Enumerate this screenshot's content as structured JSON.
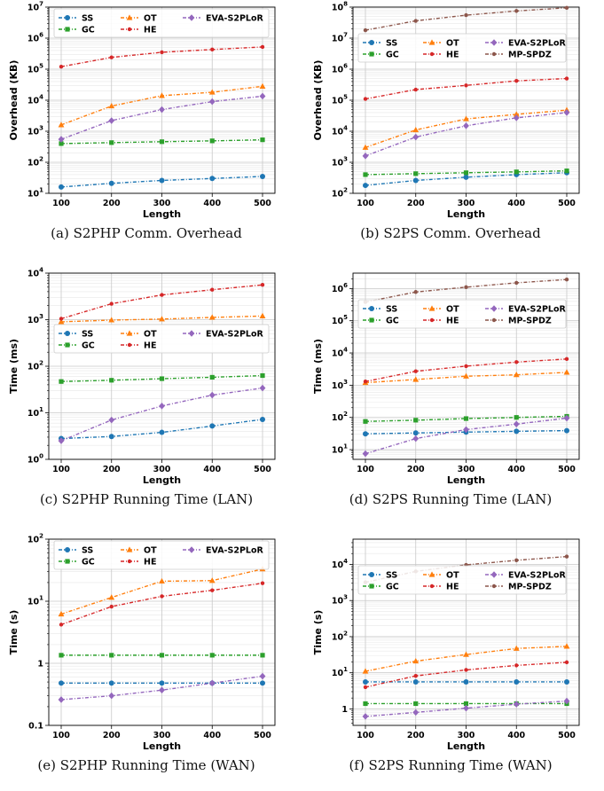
{
  "chart_data": [
    {
      "id": "a",
      "type": "line",
      "caption": "(a) S2PHP Comm. Overhead",
      "xlabel": "Length",
      "ylabel": "Overhead (KB)",
      "yscale": "log",
      "ylim": [
        10,
        10000000
      ],
      "x": [
        100,
        200,
        300,
        400,
        500
      ],
      "yticks": [
        {
          "v": 10,
          "b": "10",
          "e": "1"
        },
        {
          "v": 100,
          "b": "10",
          "e": "2"
        },
        {
          "v": 1000,
          "b": "10",
          "e": "3"
        },
        {
          "v": 10000,
          "b": "10",
          "e": "4"
        },
        {
          "v": 100000,
          "b": "10",
          "e": "5"
        },
        {
          "v": 1000000,
          "b": "10",
          "e": "6"
        },
        {
          "v": 10000000,
          "b": "10",
          "e": "7"
        }
      ],
      "legend": "top",
      "series": [
        {
          "name": "SS",
          "color": "#1f77b4",
          "marker": "circle",
          "values": [
            16,
            21,
            26,
            30,
            35
          ]
        },
        {
          "name": "GC",
          "color": "#2ca02c",
          "marker": "square",
          "values": [
            400,
            430,
            460,
            490,
            530
          ]
        },
        {
          "name": "OT",
          "color": "#ff7f0e",
          "marker": "triangle",
          "values": [
            1600,
            6500,
            14000,
            18000,
            28000
          ]
        },
        {
          "name": "HE",
          "color": "#d62728",
          "marker": "dot",
          "values": [
            120000,
            240000,
            350000,
            430000,
            520000
          ]
        },
        {
          "name": "EVA-S2PLoR",
          "color": "#9467bd",
          "marker": "diamond",
          "values": [
            550,
            2200,
            5000,
            9000,
            13500
          ]
        }
      ]
    },
    {
      "id": "b",
      "type": "line",
      "caption": "(b) S2PS Comm. Overhead",
      "xlabel": "Length",
      "ylabel": "Overhead (KB)",
      "yscale": "log",
      "ylim": [
        100,
        100000000
      ],
      "x": [
        100,
        200,
        300,
        400,
        500
      ],
      "yticks": [
        {
          "v": 100,
          "b": "10",
          "e": "2"
        },
        {
          "v": 1000,
          "b": "10",
          "e": "3"
        },
        {
          "v": 10000,
          "b": "10",
          "e": "4"
        },
        {
          "v": 100000,
          "b": "10",
          "e": "5"
        },
        {
          "v": 1000000,
          "b": "10",
          "e": "6"
        },
        {
          "v": 10000000,
          "b": "10",
          "e": "7"
        },
        {
          "v": 100000000,
          "b": "10",
          "e": "8"
        }
      ],
      "legend": "upper",
      "series": [
        {
          "name": "SS",
          "color": "#1f77b4",
          "marker": "circle",
          "values": [
            180,
            260,
            330,
            400,
            460
          ]
        },
        {
          "name": "GC",
          "color": "#2ca02c",
          "marker": "square",
          "values": [
            400,
            430,
            460,
            490,
            530
          ]
        },
        {
          "name": "OT",
          "color": "#ff7f0e",
          "marker": "triangle",
          "values": [
            3000,
            11000,
            25000,
            35000,
            48000
          ]
        },
        {
          "name": "HE",
          "color": "#d62728",
          "marker": "dot",
          "values": [
            110000,
            220000,
            300000,
            420000,
            500000
          ]
        },
        {
          "name": "EVA-S2PLoR",
          "color": "#9467bd",
          "marker": "diamond",
          "values": [
            1600,
            6500,
            15000,
            27000,
            40000
          ]
        },
        {
          "name": "MP-SPDZ",
          "color": "#8c564b",
          "marker": "dot",
          "values": [
            18000000,
            36000000,
            55000000,
            75000000,
            95000000
          ]
        }
      ]
    },
    {
      "id": "c",
      "type": "line",
      "caption": "(c) S2PHP Running Time (LAN)",
      "xlabel": "Length",
      "ylabel": "Time (ms)",
      "yscale": "log",
      "ylim": [
        1,
        10000
      ],
      "x": [
        100,
        200,
        300,
        400,
        500
      ],
      "yticks": [
        {
          "v": 1,
          "b": "10",
          "e": "0"
        },
        {
          "v": 10,
          "b": "10",
          "e": "1"
        },
        {
          "v": 100,
          "b": "10",
          "e": "2"
        },
        {
          "v": 1000,
          "b": "10",
          "e": "3"
        },
        {
          "v": 10000,
          "b": "10",
          "e": "4"
        }
      ],
      "legend": "middle",
      "series": [
        {
          "name": "SS",
          "color": "#1f77b4",
          "marker": "circle",
          "values": [
            2.8,
            3.1,
            3.8,
            5.2,
            7.2
          ]
        },
        {
          "name": "GC",
          "color": "#2ca02c",
          "marker": "square",
          "values": [
            47,
            50,
            54,
            58,
            63
          ]
        },
        {
          "name": "OT",
          "color": "#ff7f0e",
          "marker": "triangle",
          "values": [
            900,
            980,
            1030,
            1120,
            1200
          ]
        },
        {
          "name": "HE",
          "color": "#d62728",
          "marker": "dot",
          "values": [
            1050,
            2200,
            3400,
            4400,
            5600
          ]
        },
        {
          "name": "EVA-S2PLoR",
          "color": "#9467bd",
          "marker": "diamond",
          "values": [
            2.5,
            7,
            14,
            24,
            34
          ]
        }
      ]
    },
    {
      "id": "d",
      "type": "line",
      "caption": "(d) S2PS Running Time (LAN)",
      "xlabel": "Length",
      "ylabel": "Time (ms)",
      "yscale": "log",
      "ylim": [
        5,
        3000000
      ],
      "x": [
        100,
        200,
        300,
        400,
        500
      ],
      "yticks": [
        {
          "v": 10,
          "b": "10",
          "e": "1"
        },
        {
          "v": 100,
          "b": "10",
          "e": "2"
        },
        {
          "v": 1000,
          "b": "10",
          "e": "3"
        },
        {
          "v": 10000,
          "b": "10",
          "e": "4"
        },
        {
          "v": 100000,
          "b": "10",
          "e": "5"
        },
        {
          "v": 1000000,
          "b": "10",
          "e": "6"
        }
      ],
      "legend": "upper",
      "series": [
        {
          "name": "SS",
          "color": "#1f77b4",
          "marker": "circle",
          "values": [
            31,
            33,
            35,
            37,
            39
          ]
        },
        {
          "name": "GC",
          "color": "#2ca02c",
          "marker": "square",
          "values": [
            75,
            82,
            92,
            100,
            108
          ]
        },
        {
          "name": "OT",
          "color": "#ff7f0e",
          "marker": "triangle",
          "values": [
            1200,
            1500,
            1900,
            2100,
            2500
          ]
        },
        {
          "name": "HE",
          "color": "#d62728",
          "marker": "dot",
          "values": [
            1300,
            2700,
            3900,
            5200,
            6500
          ]
        },
        {
          "name": "EVA-S2PLoR",
          "color": "#9467bd",
          "marker": "diamond",
          "values": [
            7.5,
            22,
            42,
            62,
            95
          ]
        },
        {
          "name": "MP-SPDZ",
          "color": "#8c564b",
          "marker": "dot",
          "values": [
            380000,
            780000,
            1100000,
            1500000,
            1900000
          ]
        }
      ]
    },
    {
      "id": "e",
      "type": "line",
      "caption": "(e) S2PHP Running Time (WAN)",
      "xlabel": "Length",
      "ylabel": "Time (s)",
      "yscale": "log",
      "ylim": [
        0.1,
        100
      ],
      "x": [
        100,
        200,
        300,
        400,
        500
      ],
      "yticks": [
        {
          "v": 0.1,
          "b": "0.1",
          "e": ""
        },
        {
          "v": 1,
          "b": "1",
          "e": ""
        },
        {
          "v": 10,
          "b": "10",
          "e": "1"
        },
        {
          "v": 100,
          "b": "10",
          "e": "2"
        }
      ],
      "legend": "top",
      "series": [
        {
          "name": "SS",
          "color": "#1f77b4",
          "marker": "circle",
          "values": [
            0.48,
            0.48,
            0.48,
            0.48,
            0.48
          ]
        },
        {
          "name": "GC",
          "color": "#2ca02c",
          "marker": "square",
          "values": [
            1.35,
            1.35,
            1.35,
            1.35,
            1.35
          ]
        },
        {
          "name": "OT",
          "color": "#ff7f0e",
          "marker": "triangle",
          "values": [
            6.2,
            11.5,
            21,
            21.5,
            33
          ]
        },
        {
          "name": "HE",
          "color": "#d62728",
          "marker": "dot",
          "values": [
            4.2,
            8.2,
            12,
            15,
            19.5
          ]
        },
        {
          "name": "EVA-S2PLoR",
          "color": "#9467bd",
          "marker": "diamond",
          "values": [
            0.26,
            0.3,
            0.37,
            0.48,
            0.62
          ]
        }
      ]
    },
    {
      "id": "f",
      "type": "line",
      "caption": "(f) S2PS Running Time (WAN)",
      "xlabel": "Length",
      "ylabel": "Time (s)",
      "yscale": "log",
      "ylim": [
        0.35,
        50000
      ],
      "x": [
        100,
        200,
        300,
        400,
        500
      ],
      "yticks": [
        {
          "v": 1,
          "b": "1",
          "e": ""
        },
        {
          "v": 10,
          "b": "10",
          "e": "1"
        },
        {
          "v": 100,
          "b": "10",
          "e": "2"
        },
        {
          "v": 1000,
          "b": "10",
          "e": "3"
        },
        {
          "v": 10000,
          "b": "10",
          "e": "4"
        }
      ],
      "legend": "upper",
      "series": [
        {
          "name": "SS",
          "color": "#1f77b4",
          "marker": "circle",
          "values": [
            5.6,
            5.6,
            5.6,
            5.6,
            5.6
          ]
        },
        {
          "name": "GC",
          "color": "#2ca02c",
          "marker": "square",
          "values": [
            1.4,
            1.4,
            1.4,
            1.4,
            1.4
          ]
        },
        {
          "name": "OT",
          "color": "#ff7f0e",
          "marker": "triangle",
          "values": [
            11,
            21,
            32,
            47,
            54
          ]
        },
        {
          "name": "HE",
          "color": "#d62728",
          "marker": "dot",
          "values": [
            4,
            8.2,
            12,
            16,
            19.5
          ]
        },
        {
          "name": "EVA-S2PLoR",
          "color": "#9467bd",
          "marker": "diamond",
          "values": [
            0.62,
            0.8,
            1.05,
            1.35,
            1.65
          ]
        },
        {
          "name": "MP-SPDZ",
          "color": "#8c564b",
          "marker": "dot",
          "values": [
            3200,
            6400,
            9700,
            13000,
            16500
          ]
        }
      ]
    }
  ]
}
